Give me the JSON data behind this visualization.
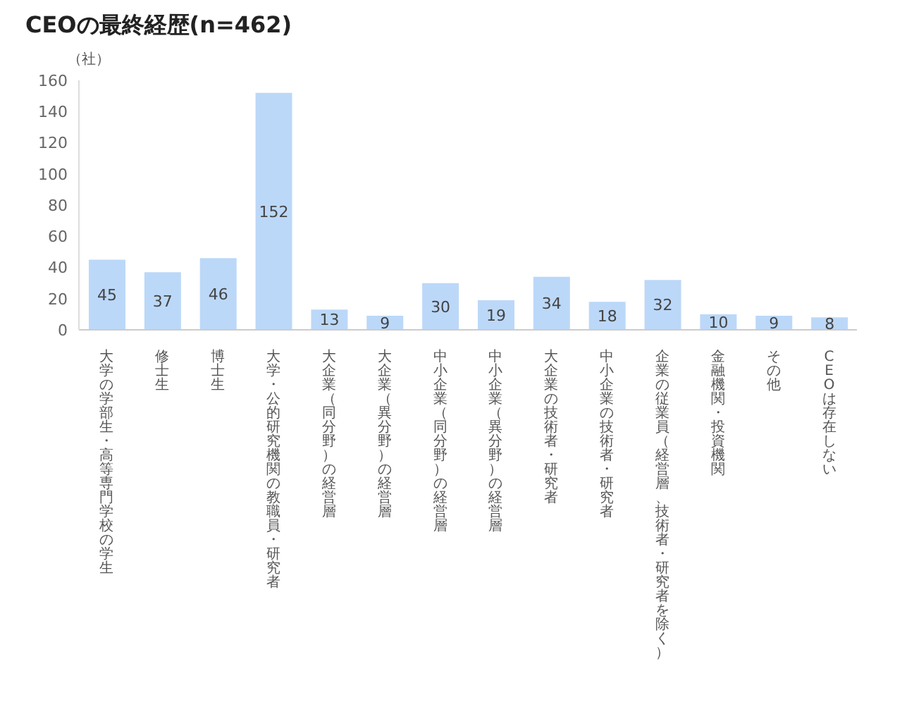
{
  "chart_data": {
    "type": "bar",
    "title": "CEOの最終経歴(n=462)",
    "ylabel": "（社）",
    "categories": [
      "大学の学部生・高等専門学校の学生",
      "修士生",
      "博士生",
      "大学・公的研究機関の教職員・研究者",
      "大企業（同分野）の経営層",
      "大企業（異分野）の経営層",
      "中小企業（同分野）の経営層",
      "中小企業（異分野）の経営層",
      "大企業の技術者・研究者",
      "中小企業の技術者・研究者",
      "企業の従業員（経営層、技術者・研究者を除く）",
      "金融機関・投資機関",
      "その他",
      "CEOは存在しない"
    ],
    "values": [
      45,
      37,
      46,
      152,
      13,
      9,
      30,
      19,
      34,
      18,
      32,
      10,
      9,
      8
    ],
    "color": "#bcd8f8",
    "ylim": [
      0,
      160
    ],
    "yticks": [
      0,
      20,
      40,
      60,
      80,
      100,
      120,
      140,
      160
    ],
    "grid": false,
    "data_labels": true
  }
}
